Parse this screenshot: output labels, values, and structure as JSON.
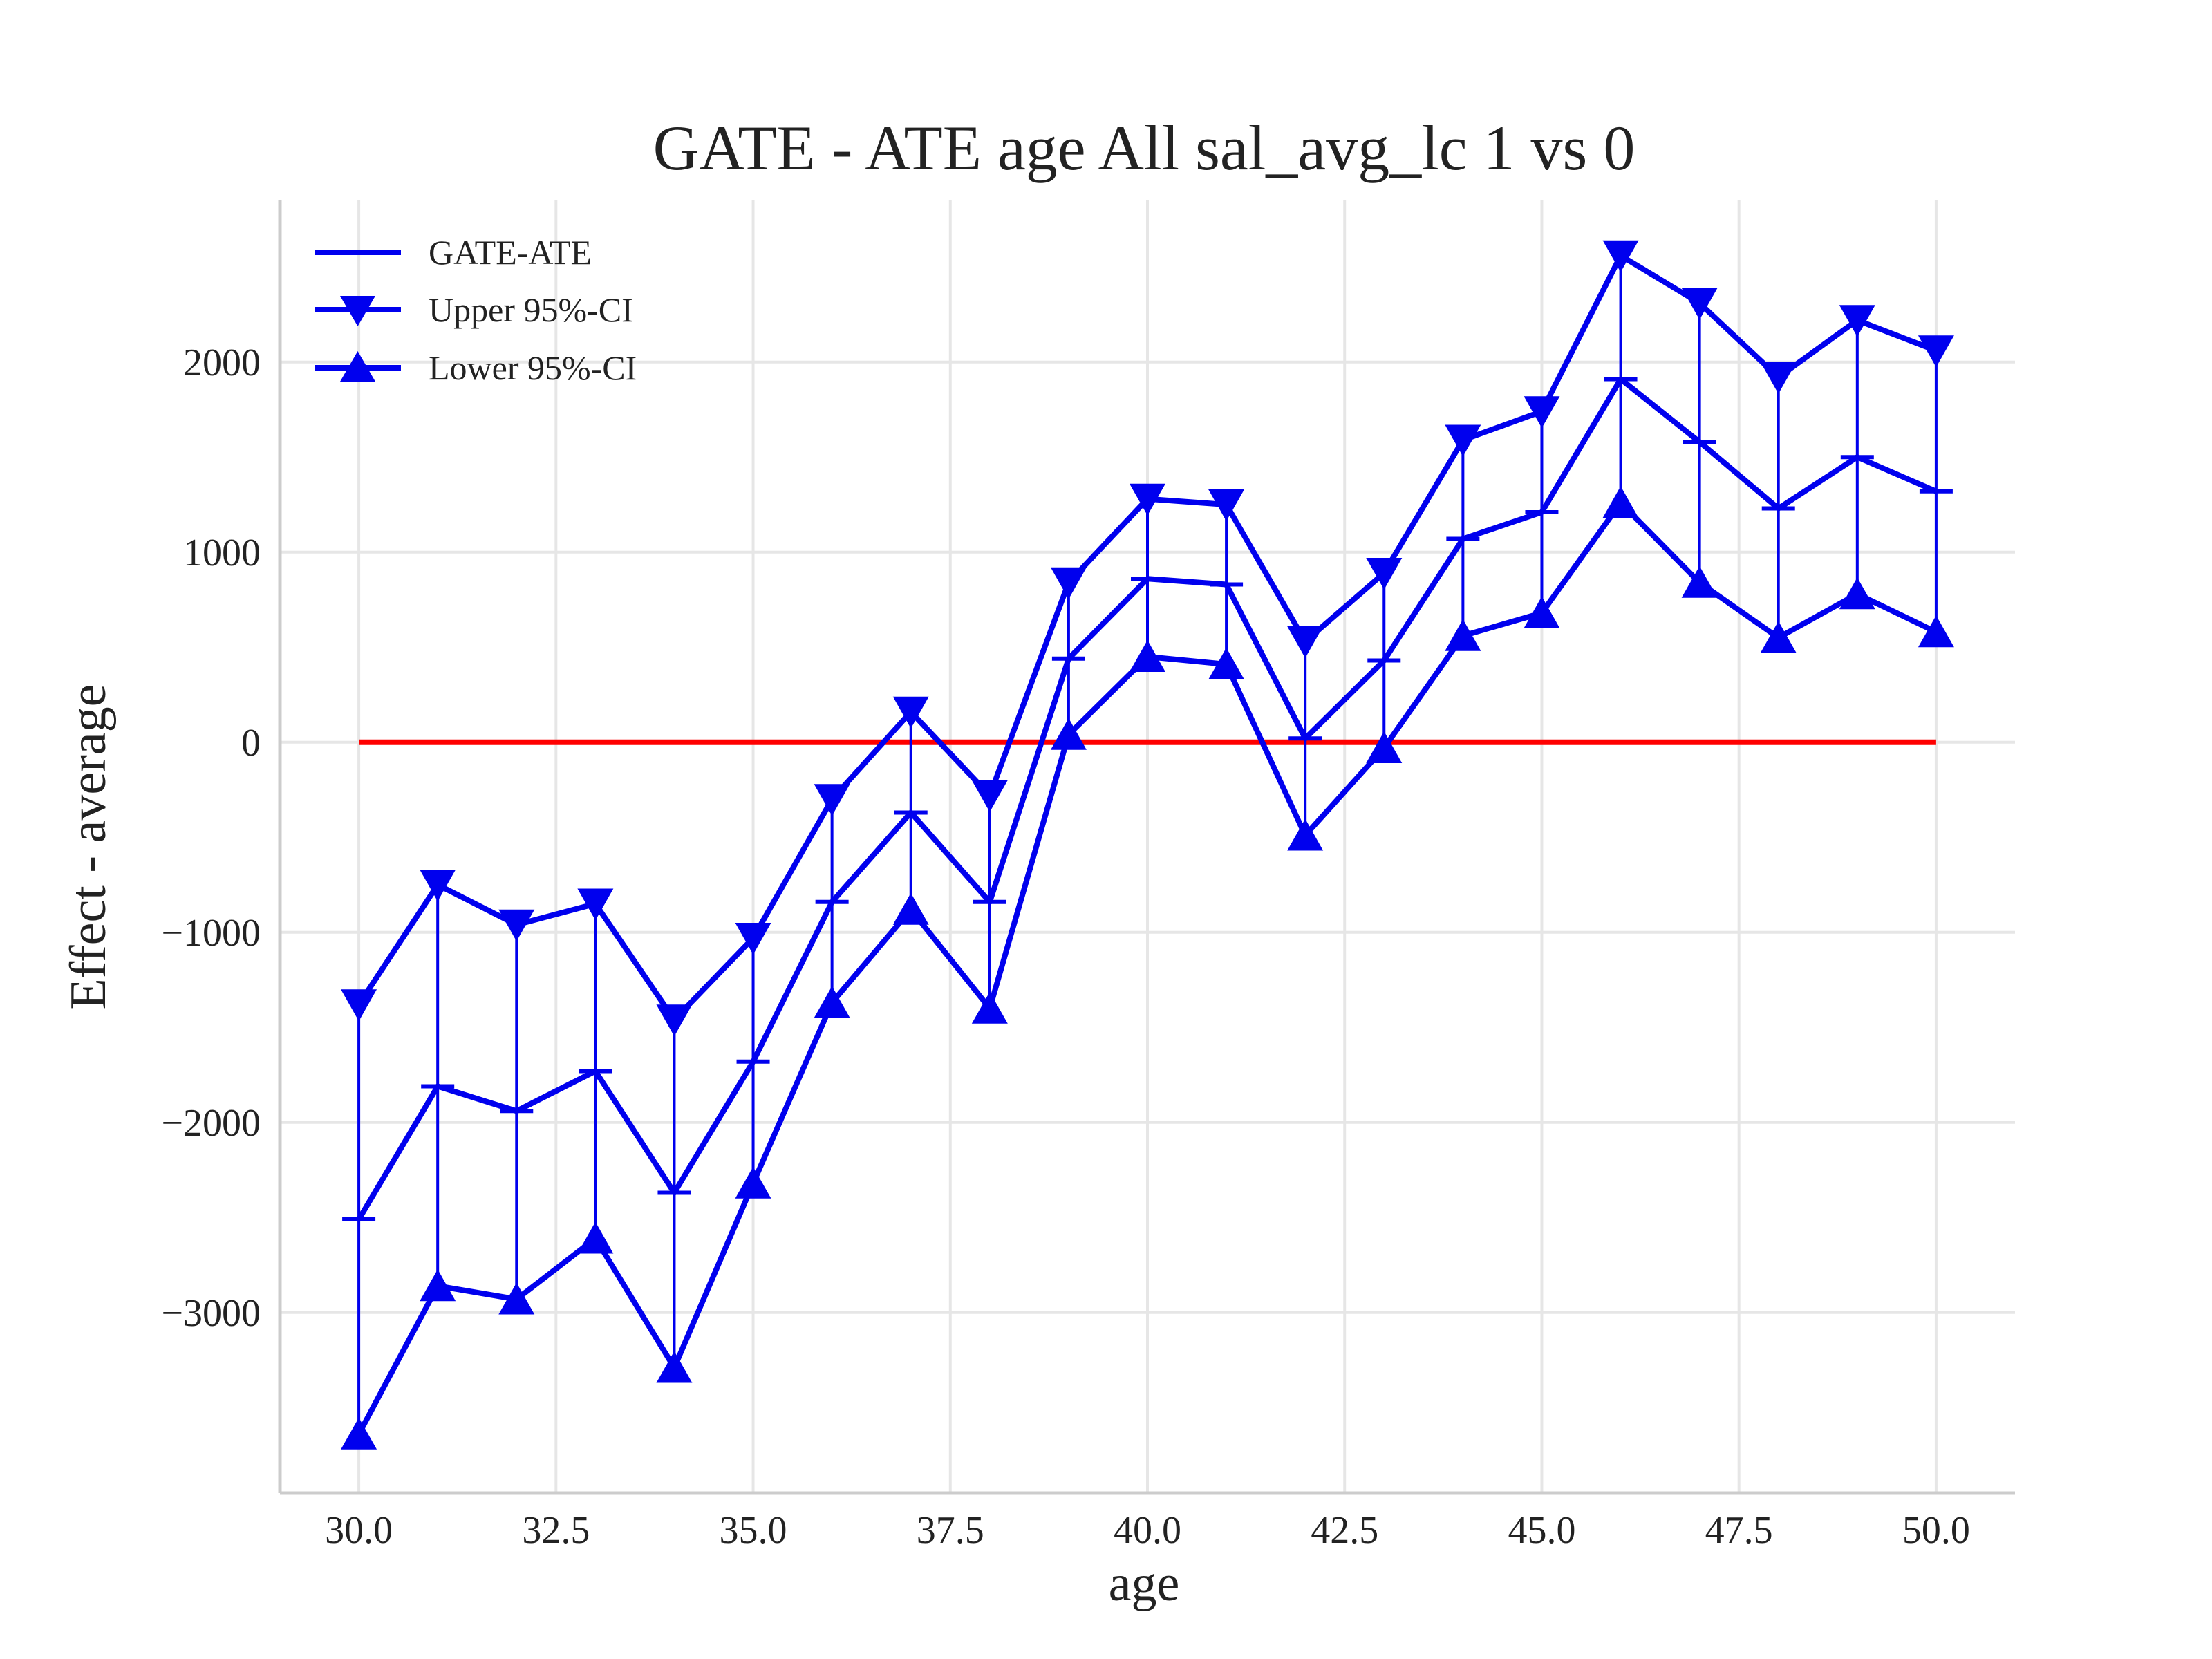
{
  "colors": {
    "series": "#0000ee",
    "zero_line": "#ff0000",
    "grid": "#e6e6e6",
    "axis": "#cccccc",
    "text": "#222222"
  },
  "chart_data": {
    "type": "line",
    "title": "GATE - ATE age All sal_avg_lc  1 vs 0",
    "xlabel": "age",
    "ylabel": "Effect - average",
    "xlim": [
      29,
      51
    ],
    "ylim": [
      -3950,
      2850
    ],
    "xticks": [
      30.0,
      32.5,
      35.0,
      37.5,
      40.0,
      42.5,
      45.0,
      47.5,
      50.0
    ],
    "xtick_labels": [
      "30.0",
      "32.5",
      "35.0",
      "37.5",
      "40.0",
      "42.5",
      "45.0",
      "47.5",
      "50.0"
    ],
    "yticks": [
      -3000,
      -2000,
      -1000,
      0,
      1000,
      2000
    ],
    "ytick_labels": [
      "−3000",
      "−2000",
      "−1000",
      "0",
      "1000",
      "2000"
    ],
    "grid": true,
    "legend_position": "top-left",
    "x": [
      30,
      31,
      32,
      33,
      34,
      35,
      36,
      37,
      38,
      39,
      40,
      41,
      42,
      43,
      44,
      45,
      46,
      47,
      48,
      49,
      50
    ],
    "series": [
      {
        "name": "GATE-ATE",
        "marker": "hline",
        "values": [
          -2510,
          -1810,
          -1940,
          -1730,
          -2370,
          -1680,
          -840,
          -370,
          -840,
          440,
          860,
          830,
          20,
          430,
          1070,
          1210,
          1910,
          1580,
          1230,
          1500,
          1320
        ]
      },
      {
        "name": "Upper 95%-CI",
        "marker": "triangle-down",
        "values": [
          -1380,
          -750,
          -960,
          -850,
          -1460,
          -1030,
          -300,
          160,
          -280,
          840,
          1280,
          1250,
          530,
          890,
          1590,
          1740,
          2560,
          2310,
          1920,
          2220,
          2060
        ]
      },
      {
        "name": "Lower 95%-CI",
        "marker": "triangle-up",
        "values": [
          -3640,
          -2860,
          -2930,
          -2610,
          -3290,
          -2320,
          -1370,
          -880,
          -1400,
          40,
          450,
          410,
          -490,
          -30,
          560,
          680,
          1260,
          840,
          550,
          780,
          580
        ]
      }
    ],
    "reference_line": {
      "y": 0,
      "x_from": 30,
      "x_to": 50
    }
  }
}
